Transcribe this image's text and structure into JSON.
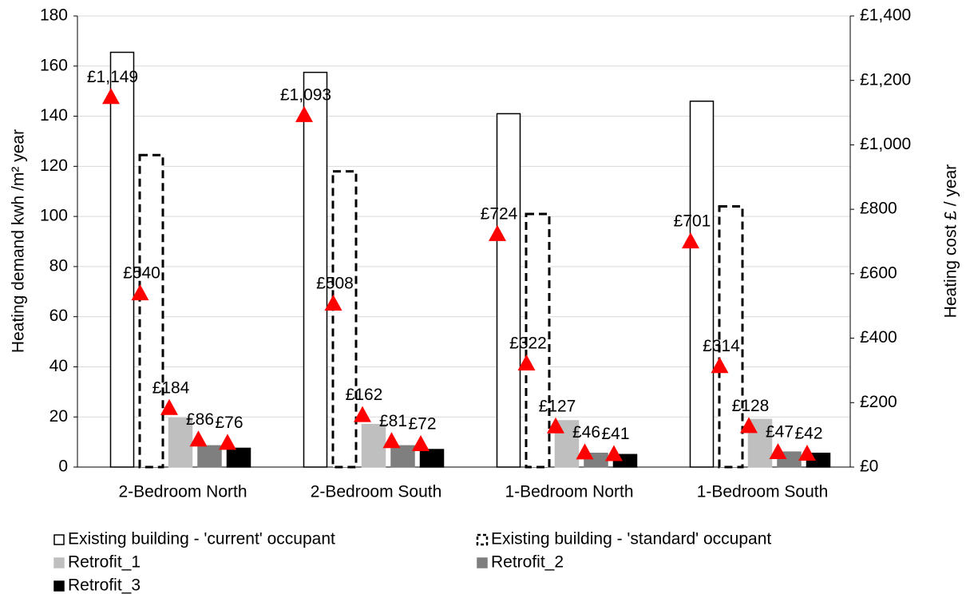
{
  "chart_data": {
    "type": "bar",
    "y_label": "Heating demand kwh /m² year",
    "y2_label": "Heating cost £ / year",
    "categories": [
      "2-Bedroom North",
      "2-Bedroom South",
      "1-Bedroom North",
      "1-Bedroom South"
    ],
    "series": [
      {
        "name": "Existing building - 'current' occupant",
        "color": "#ffffff",
        "stroke": "#000000",
        "dashed": false,
        "values": [
          165.5,
          157.5,
          141,
          146
        ],
        "cost": [
          1149,
          1093,
          724,
          701
        ],
        "cost_labels": [
          "£1,149",
          "£1,093",
          "£724",
          "£701"
        ]
      },
      {
        "name": "Existing building - 'standard' occupant",
        "color": "#ffffff",
        "stroke": "#000000",
        "dashed": true,
        "values": [
          124.5,
          118,
          101,
          104
        ],
        "cost": [
          540,
          508,
          322,
          314
        ],
        "cost_labels": [
          "£540",
          "£508",
          "£322",
          "£314"
        ]
      },
      {
        "name": "Retrofit_1",
        "color": "#bfbfbf",
        "stroke": "#bfbfbf",
        "dashed": false,
        "values": [
          19.5,
          17,
          18.5,
          19
        ],
        "cost": [
          184,
          162,
          127,
          128
        ],
        "cost_labels": [
          "£184",
          "£162",
          "£127",
          "£128"
        ]
      },
      {
        "name": "Retrofit_2",
        "color": "#7f7f7f",
        "stroke": "#7f7f7f",
        "dashed": false,
        "values": [
          8.5,
          8.5,
          5.5,
          6
        ],
        "cost": [
          86,
          81,
          46,
          47
        ],
        "cost_labels": [
          "£86",
          "£81",
          "£46",
          "£47"
        ]
      },
      {
        "name": "Retrofit_3",
        "color": "#000000",
        "stroke": "#000000",
        "dashed": false,
        "values": [
          7.5,
          7,
          5,
          5.5
        ],
        "cost": [
          76,
          72,
          41,
          42
        ],
        "cost_labels": [
          "£76",
          "£72",
          "£41",
          "£42"
        ]
      }
    ],
    "cost_color": "#ff0000",
    "ylim": [
      0,
      180
    ],
    "yticks": [
      0,
      20,
      40,
      60,
      80,
      100,
      120,
      140,
      160,
      180
    ],
    "y2lim": [
      0,
      1400
    ],
    "y2ticks": [
      {
        "value": 0,
        "label": "£0"
      },
      {
        "value": 200,
        "label": "£200"
      },
      {
        "value": 400,
        "label": "£400"
      },
      {
        "value": 600,
        "label": "£600"
      },
      {
        "value": 800,
        "label": "£800"
      },
      {
        "value": 1000,
        "label": "£1,000"
      },
      {
        "value": 1200,
        "label": "£1,200"
      },
      {
        "value": 1400,
        "label": "£1,400"
      }
    ],
    "grid": true,
    "legend": "bottom"
  }
}
